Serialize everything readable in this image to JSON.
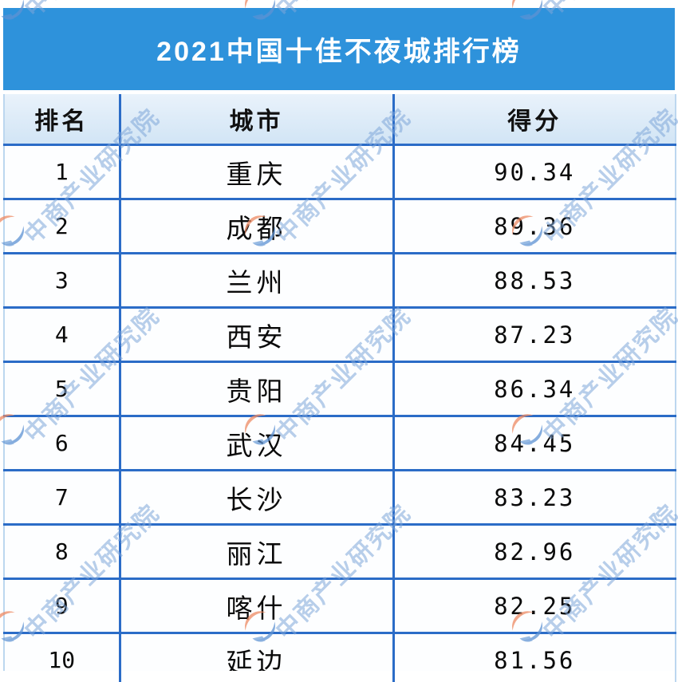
{
  "banner": {
    "title": "2021中国十佳不夜城排行榜"
  },
  "table": {
    "headers": {
      "rank": "排名",
      "city": "城市",
      "score": "得分"
    },
    "rows": [
      {
        "rank": "1",
        "city": "重庆",
        "score": "90.34"
      },
      {
        "rank": "2",
        "city": "成都",
        "score": "89.36"
      },
      {
        "rank": "3",
        "city": "兰州",
        "score": "88.53"
      },
      {
        "rank": "4",
        "city": "西安",
        "score": "87.23"
      },
      {
        "rank": "5",
        "city": "贵阳",
        "score": "86.34"
      },
      {
        "rank": "6",
        "city": "武汉",
        "score": "84.45"
      },
      {
        "rank": "7",
        "city": "长沙",
        "score": "83.23"
      },
      {
        "rank": "8",
        "city": "丽江",
        "score": "82.96"
      },
      {
        "rank": "9",
        "city": "喀什",
        "score": "82.25"
      },
      {
        "rank": "10",
        "city": "延边",
        "score": "81.56"
      }
    ]
  },
  "watermark": {
    "text": "中商产业研究院",
    "logo_icon": "cbi-globe-logo-icon"
  },
  "colors": {
    "banner_blue": "#2e92db",
    "grid_border_blue": "#2b6cc7",
    "header_bg_light_blue": "#d9e9f8",
    "watermark_blue": "#7ea6d8",
    "logo_orange": "#ee8a63",
    "logo_blue": "#5e93d4"
  },
  "chart_data": {
    "type": "table",
    "title": "2021中国十佳不夜城排行榜",
    "columns": [
      "排名",
      "城市",
      "得分"
    ],
    "rows": [
      [
        1,
        "重庆",
        90.34
      ],
      [
        2,
        "成都",
        89.36
      ],
      [
        3,
        "兰州",
        88.53
      ],
      [
        4,
        "西安",
        87.23
      ],
      [
        5,
        "贵阳",
        86.34
      ],
      [
        6,
        "武汉",
        84.45
      ],
      [
        7,
        "长沙",
        83.23
      ],
      [
        8,
        "丽江",
        82.96
      ],
      [
        9,
        "喀什",
        82.25
      ],
      [
        10,
        "延边",
        81.56
      ]
    ]
  }
}
